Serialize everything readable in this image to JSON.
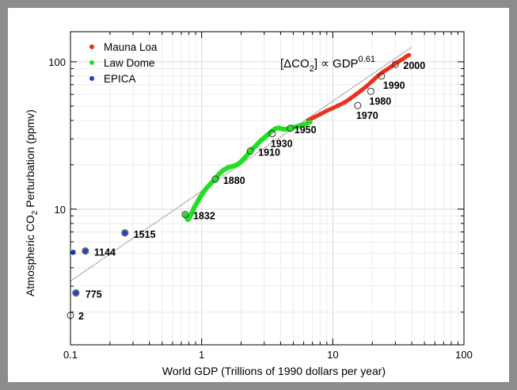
{
  "chart_data": {
    "type": "scatter",
    "xlabel": "World GDP (Trillions of 1990 dollars per year)",
    "ylabel": "Atmospheric CO2 Perturbation (ppmv)",
    "ylabel_parts": {
      "main": "Atmospheric CO",
      "sub": "2",
      "rest": " Perturbation (ppmv)"
    },
    "annotation": {
      "open": "[ΔCO",
      "sub": "2",
      "close": "] ∝ GDP",
      "sup": "0.61"
    },
    "x_scale": "log",
    "y_scale": "log",
    "xlim": [
      0.1,
      100
    ],
    "ylim": [
      1.2,
      160
    ],
    "x_ticks": [
      {
        "v": 0.1,
        "label": "0.1"
      },
      {
        "v": 1,
        "label": "1"
      },
      {
        "v": 10,
        "label": "10"
      },
      {
        "v": 100,
        "label": "100"
      }
    ],
    "y_ticks": [
      {
        "v": 10,
        "label": "10"
      },
      {
        "v": 100,
        "label": "100"
      }
    ],
    "grid": true,
    "legend_position": "top-left",
    "series": [
      {
        "name": "Mauna Loa",
        "color": "#e8321e",
        "x": [
          6.5,
          7.2,
          8.0,
          9.0,
          10.0,
          11.0,
          12.3,
          13.5,
          15.0,
          16.5,
          18.0,
          20.0,
          22.0,
          24.0,
          26.0,
          28.0,
          30.0,
          32.0,
          34.0,
          36.0,
          38.0
        ],
        "y": [
          40,
          42,
          44,
          46.5,
          48.5,
          50.5,
          53,
          56,
          60,
          64,
          68,
          74,
          80,
          85,
          89,
          93,
          97,
          101,
          104,
          108,
          111
        ]
      },
      {
        "name": "Law Dome",
        "color": "#21e021",
        "x": [
          0.75,
          0.76,
          0.77,
          0.78,
          0.79,
          0.8,
          0.82,
          0.85,
          0.88,
          0.92,
          0.97,
          1.03,
          1.1,
          1.18,
          1.27,
          1.37,
          1.48,
          1.6,
          1.75,
          1.9,
          2.05,
          2.2,
          2.35,
          2.55,
          2.75,
          3.0,
          3.25,
          3.45,
          3.65,
          3.85,
          4.1,
          4.4,
          4.75,
          5.1,
          5.5,
          5.9,
          6.3,
          6.7
        ],
        "y": [
          9.2,
          8.9,
          8.7,
          8.5,
          8.5,
          8.6,
          9.0,
          9.6,
          10.3,
          11.0,
          12.0,
          13.0,
          14.0,
          15.0,
          16.0,
          17.5,
          18.5,
          19.2,
          19.6,
          20.2,
          21.5,
          23.0,
          24.8,
          26.5,
          28.5,
          30.5,
          32.5,
          34.0,
          35.2,
          35.6,
          35.0,
          34.8,
          35.4,
          36.0,
          36.6,
          37.3,
          38.0,
          39.0
        ]
      },
      {
        "name": "EPICA",
        "color": "#1c3fc4",
        "x": [
          0.105,
          0.11,
          0.13,
          0.26
        ],
        "y": [
          5.1,
          2.7,
          5.2,
          6.9
        ]
      }
    ],
    "markers": [
      {
        "label": "2",
        "x": 0.1,
        "y": 1.9
      },
      {
        "label": "775",
        "x": 0.11,
        "y": 2.7
      },
      {
        "label": "1144",
        "x": 0.13,
        "y": 5.2
      },
      {
        "label": "1515",
        "x": 0.26,
        "y": 6.9
      },
      {
        "label": "1832",
        "x": 0.75,
        "y": 9.2
      },
      {
        "label": "1880",
        "x": 1.27,
        "y": 16.0
      },
      {
        "label": "1910",
        "x": 2.35,
        "y": 24.8
      },
      {
        "label": "1930",
        "x": 3.45,
        "y": 32.5
      },
      {
        "label": "1950",
        "x": 4.75,
        "y": 35.4
      },
      {
        "label": "1970",
        "x": 15.5,
        "y": 50.5
      },
      {
        "label": "1980",
        "x": 19.5,
        "y": 63
      },
      {
        "label": "1990",
        "x": 23.5,
        "y": 80
      },
      {
        "label": "2000",
        "x": 30.0,
        "y": 96
      }
    ],
    "fit_line": {
      "exponent": 0.61,
      "x": [
        0.1,
        40
      ],
      "y": [
        3.25,
        126
      ]
    }
  }
}
